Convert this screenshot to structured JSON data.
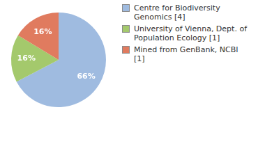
{
  "chart_data": {
    "type": "pie",
    "categories": [
      "Centre for Biodiversity Genomics [4]",
      "University of Vienna, Dept. of Population Ecology [1]",
      "Mined from GenBank, NCBI [1]"
    ],
    "values": [
      66,
      16,
      16
    ],
    "value_labels": [
      "66%",
      "16%",
      "16%"
    ],
    "colors": [
      "#9fbbe0",
      "#a4c96c",
      "#e07b5f"
    ],
    "data_labels": true,
    "legend": "right"
  }
}
